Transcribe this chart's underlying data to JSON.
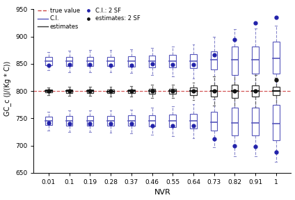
{
  "nvr_labels": [
    "0.01",
    "0.1",
    "0.19",
    "0.28",
    "0.37",
    "0.46",
    "0.55",
    "0.64",
    "0.73",
    "0.82",
    "0.91",
    "1"
  ],
  "true_value": 800,
  "ylabel": "GC_c (J/(Kg * C))",
  "xlabel": "NVR",
  "ylim": [
    650,
    960
  ],
  "yticks": [
    650,
    700,
    750,
    800,
    850,
    900,
    950
  ],
  "bg": "#ffffff",
  "red_dash_color": "#cc4444",
  "black_edge": "#333333",
  "blue_edge": "#5555bb",
  "blue_whisker": "#8888cc",
  "black_whisker": "#666666",
  "blue_median": "#5555bb",
  "black_median": "#111111",
  "blue_dot": "#2222aa",
  "black_dot": "#111111",
  "nvr_values": [
    0.01,
    0.1,
    0.19,
    0.28,
    0.37,
    0.46,
    0.55,
    0.64,
    0.73,
    0.82,
    0.91,
    1.0
  ],
  "black_centers": [
    800,
    800,
    800,
    799,
    800,
    800,
    800,
    800,
    800,
    800,
    800,
    800
  ],
  "black_q1": [
    797,
    796,
    796,
    796,
    796,
    795,
    795,
    793,
    790,
    788,
    790,
    792
  ],
  "black_q3": [
    803,
    803,
    803,
    803,
    803,
    804,
    804,
    806,
    810,
    812,
    810,
    808
  ],
  "black_wlo": [
    793,
    791,
    791,
    790,
    790,
    788,
    787,
    783,
    773,
    768,
    770,
    775
  ],
  "black_whi": [
    807,
    808,
    808,
    808,
    809,
    811,
    812,
    816,
    827,
    832,
    830,
    825
  ],
  "black_dots": [
    800,
    800,
    800,
    800,
    800,
    800,
    800,
    800,
    800,
    800,
    800,
    820
  ],
  "blue_up_centers": [
    855,
    855,
    855,
    855,
    855,
    855,
    855,
    855,
    857,
    858,
    858,
    860
  ],
  "blue_up_q1": [
    847,
    846,
    846,
    846,
    845,
    844,
    843,
    842,
    840,
    830,
    832,
    832
  ],
  "blue_up_q3": [
    862,
    863,
    863,
    863,
    864,
    865,
    866,
    868,
    873,
    882,
    882,
    890
  ],
  "blue_up_wlo": [
    838,
    835,
    835,
    834,
    833,
    830,
    827,
    823,
    806,
    790,
    800,
    805
  ],
  "blue_up_whi": [
    872,
    874,
    875,
    875,
    876,
    879,
    882,
    886,
    900,
    913,
    915,
    920
  ],
  "blue_up_dots": [
    847,
    848,
    848,
    847,
    847,
    850,
    849,
    849,
    866,
    895,
    925,
    935
  ],
  "blue_lo_centers": [
    745,
    745,
    745,
    745,
    745,
    745,
    745,
    745,
    743,
    742,
    742,
    740
  ],
  "blue_lo_q1": [
    738,
    737,
    737,
    737,
    736,
    735,
    734,
    732,
    727,
    718,
    718,
    710
  ],
  "blue_lo_q3": [
    753,
    754,
    754,
    754,
    755,
    756,
    757,
    758,
    762,
    770,
    770,
    775
  ],
  "blue_lo_wlo": [
    728,
    725,
    725,
    724,
    723,
    720,
    717,
    714,
    697,
    680,
    680,
    670
  ],
  "blue_lo_whi": [
    762,
    764,
    765,
    765,
    766,
    769,
    772,
    776,
    785,
    796,
    800,
    806
  ],
  "blue_lo_dots": [
    742,
    740,
    740,
    740,
    740,
    737,
    736,
    736,
    712,
    700,
    698,
    688
  ]
}
